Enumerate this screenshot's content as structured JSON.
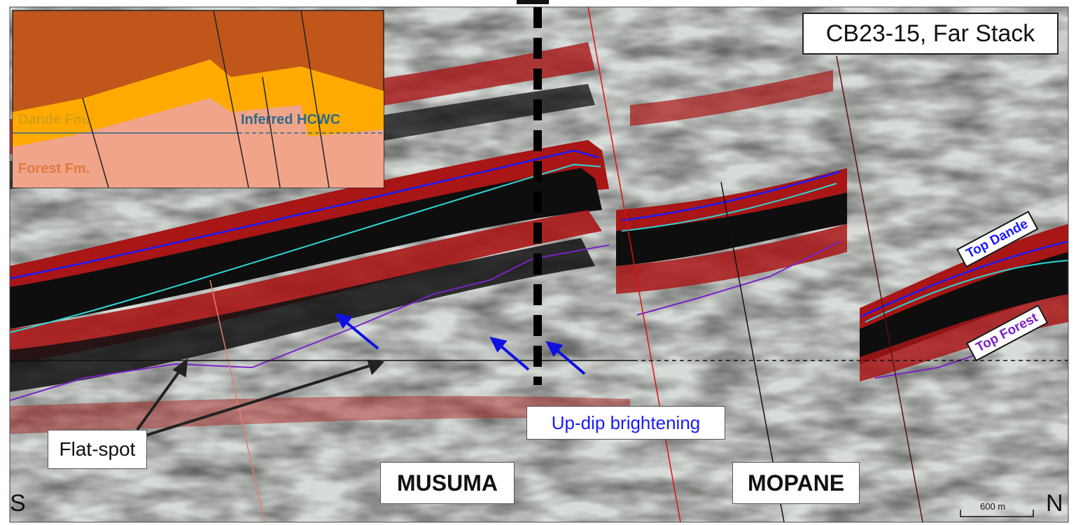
{
  "title": "CB23-15, Far Stack",
  "annotations": {
    "updip": "Up-dip brightening",
    "flat_spot": "Flat-spot",
    "top_dande": "Top Dande",
    "top_forest": "Top Forest",
    "musuma": "MUSUMA",
    "mopane": "MOPANE",
    "south": "S",
    "north": "N",
    "scale": "600 m"
  },
  "inset": {
    "dande": "Dande Fm.",
    "forest": "Forest Fm.",
    "hcwc": "Inferred HCWC"
  },
  "colors": {
    "seismic_red": "#b01818",
    "seismic_black": "#0a0a0a",
    "seismic_light": "#dfe6e4",
    "horizon_dande": "#1a1aff",
    "horizon_forest": "#7a22c8",
    "horizon_cyan": "#2fd6d6",
    "arrow_blue": "#1010e0",
    "inset_overburden": "#c0561a",
    "inset_dande": "#ffaa00",
    "inset_forest": "#f0a48a"
  }
}
